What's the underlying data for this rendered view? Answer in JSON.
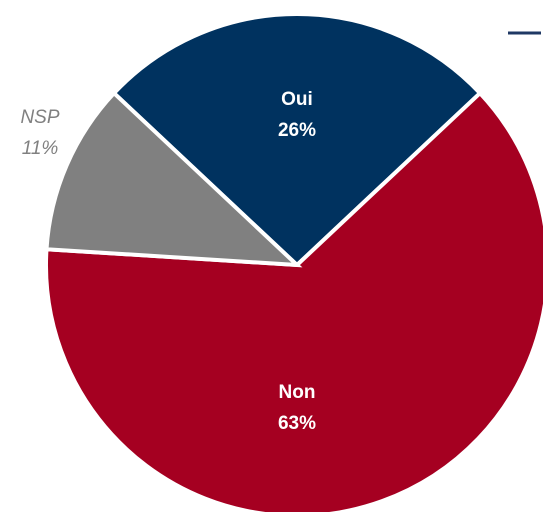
{
  "chart_data": {
    "type": "pie",
    "categories": [
      "Oui",
      "Non",
      "NSP"
    ],
    "values": [
      26,
      63,
      11
    ],
    "value_labels": [
      "26%",
      "63%",
      "11%"
    ],
    "colors": [
      "#00325f",
      "#a50021",
      "#808080"
    ]
  }
}
